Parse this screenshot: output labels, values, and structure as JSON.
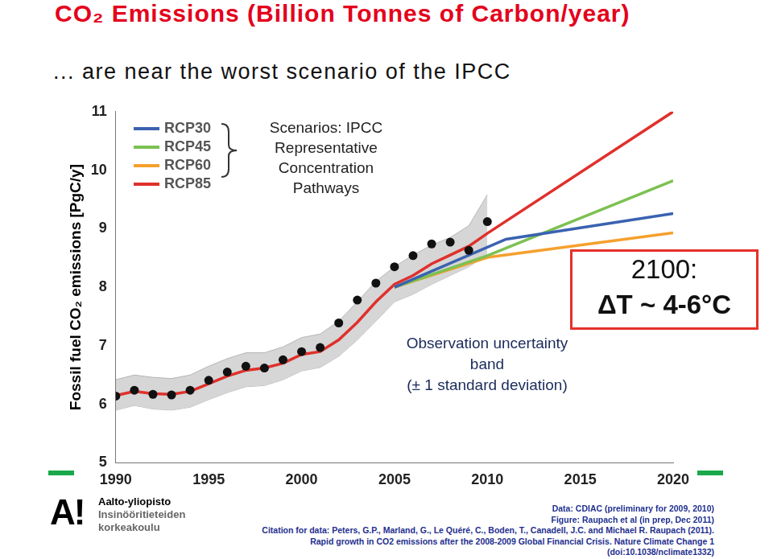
{
  "chart_data": {
    "type": "line",
    "title": "CO₂ Emissions (Billion Tonnes of Carbon/year)",
    "subtitle": "... are near the worst scenario of the IPCC",
    "y_label": "Fossil fuel CO₂ emissions [PgC/y]",
    "xlim": [
      1990,
      2020
    ],
    "xticks": [
      1990,
      1995,
      2000,
      2005,
      2010,
      2015,
      2020
    ],
    "ylim": [
      5,
      11
    ],
    "yticks": [
      5,
      6,
      7,
      8,
      9,
      10,
      11
    ],
    "grid": false,
    "legend": "top-left",
    "legend_title": [
      "Scenarios: IPCC",
      "Representative",
      "Concentration",
      "Pathways"
    ],
    "series": [
      {
        "name": "RCP30",
        "color": "#3a62b0",
        "line_style": "solid",
        "x": [
          2005,
          2011,
          2020
        ],
        "values": [
          8.0,
          8.82,
          9.26
        ]
      },
      {
        "name": "RCP45",
        "color": "#7cc152",
        "line_style": "solid",
        "x": [
          2005,
          2010,
          2020
        ],
        "values": [
          8.0,
          8.54,
          9.82
        ]
      },
      {
        "name": "RCP60",
        "color": "#f5a02d",
        "line_style": "solid",
        "x": [
          2005,
          2010,
          2020
        ],
        "values": [
          8.0,
          8.51,
          8.93
        ]
      },
      {
        "name": "RCP85",
        "color": "#e0302b",
        "line_style": "solid",
        "x": [
          1990,
          1991,
          1992,
          1993,
          1994,
          1995,
          1996,
          1997,
          1998,
          1999,
          2000,
          2001,
          2002,
          2003,
          2004,
          2005,
          2006,
          2007,
          2008,
          2009,
          2010,
          2020
        ],
        "values": [
          6.15,
          6.22,
          6.18,
          6.17,
          6.22,
          6.35,
          6.48,
          6.58,
          6.62,
          6.7,
          6.85,
          6.9,
          7.1,
          7.4,
          7.75,
          8.05,
          8.2,
          8.4,
          8.55,
          8.7,
          8.92,
          11.0
        ]
      },
      {
        "type": "scatter",
        "marker": "circle",
        "color": "#111111",
        "x": [
          1990,
          1991,
          1992,
          1993,
          1994,
          1995,
          1996,
          1997,
          1998,
          1999,
          2000,
          2001,
          2002,
          2003,
          2004,
          2005,
          2006,
          2007,
          2008,
          2009,
          2010
        ],
        "values": [
          6.14,
          6.24,
          6.17,
          6.16,
          6.24,
          6.41,
          6.55,
          6.65,
          6.62,
          6.76,
          6.9,
          6.97,
          7.39,
          7.78,
          8.07,
          8.35,
          8.54,
          8.74,
          8.77,
          8.63,
          9.12
        ]
      }
    ],
    "band": {
      "label": [
        "Observation uncertainty",
        "band",
        "(± 1 standard deviation)"
      ],
      "color": "#d6d6d6",
      "x": [
        1990,
        1991,
        1992,
        1993,
        1994,
        1995,
        1996,
        1997,
        1998,
        1999,
        2000,
        2001,
        2002,
        2003,
        2004,
        2005,
        2006,
        2007,
        2008,
        2009,
        2010
      ],
      "upper": [
        6.42,
        6.5,
        6.46,
        6.44,
        6.5,
        6.65,
        6.78,
        6.88,
        6.88,
        6.98,
        7.14,
        7.2,
        7.42,
        7.75,
        8.1,
        8.35,
        8.55,
        8.72,
        8.85,
        9.05,
        9.58
      ],
      "lower": [
        5.9,
        5.98,
        5.92,
        5.9,
        5.95,
        6.08,
        6.2,
        6.3,
        6.32,
        6.42,
        6.57,
        6.63,
        6.82,
        7.1,
        7.42,
        7.75,
        7.88,
        8.05,
        8.2,
        8.35,
        8.55
      ]
    },
    "callout": [
      "2100:",
      "ΔT ~ 4-6°C"
    ],
    "footer": {
      "logo": "A!",
      "organization": [
        "Aalto-yliopisto",
        "Insinööritieteiden",
        "korkeakoulu"
      ],
      "source": [
        "Data: CDIAC (preliminary for 2009, 2010)",
        "Figure: Raupach et al (in prep, Dec 2011)"
      ],
      "citation": [
        "Citation for data: Peters, G.P., Marland, G., Le Quéré, C., Boden, T., Canadell, J.C. and Michael R. Raupach (2011).",
        "Rapid growth in CO2 emissions after the 2008-2009 Global Financial Crisis. Nature Climate Change 1",
        "(doi:10.1038/nclimate1332)"
      ]
    }
  }
}
